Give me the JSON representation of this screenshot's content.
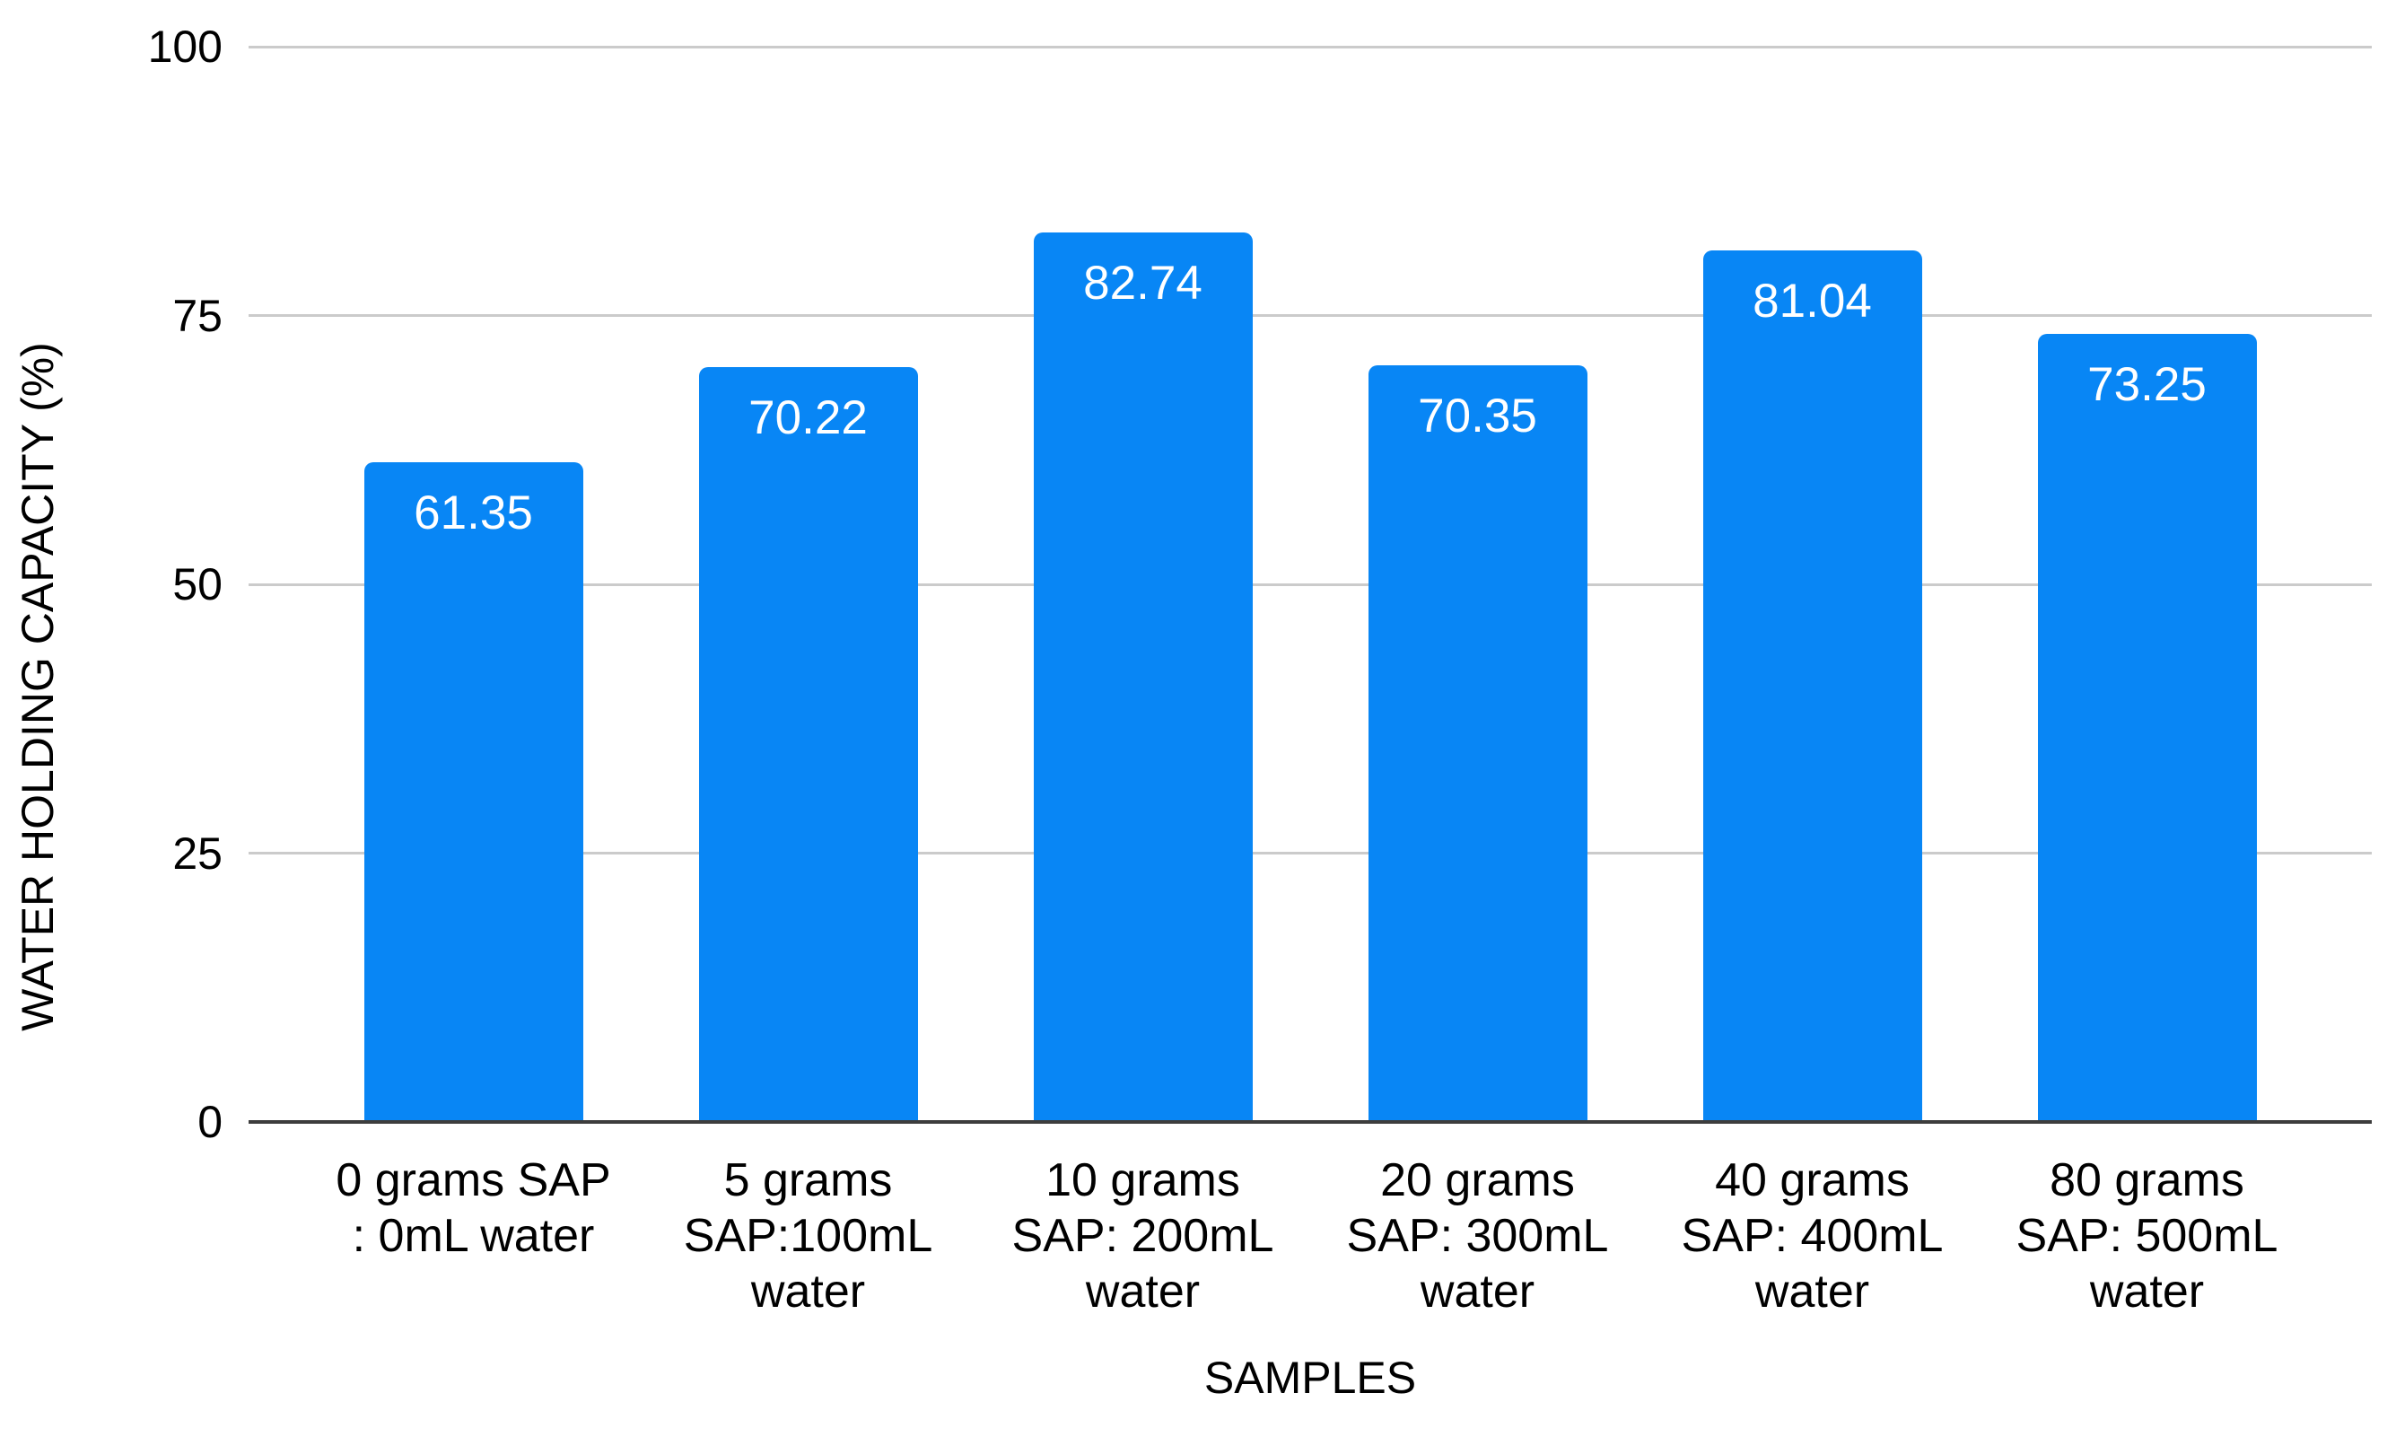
{
  "chart_data": {
    "type": "bar",
    "title": "",
    "xlabel": "SAMPLES",
    "ylabel": "WATER HOLDING CAPACITY (%)",
    "ylim": [
      0,
      100
    ],
    "yticks": [
      0,
      25,
      50,
      75,
      100
    ],
    "grid": "horizontal",
    "legend": "none",
    "bar_color": "#0886f5",
    "gridline_color": "#cbcbcb",
    "baseline_color": "#3d3d3d",
    "value_label_color": "#ffffff",
    "categories": [
      "0 grams SAP : 0mL water",
      "5 grams SAP:100mL water",
      "10 grams SAP: 200mL water",
      "20 grams SAP: 300mL water",
      "40 grams SAP: 400mL water",
      "80 grams SAP: 500mL water"
    ],
    "categories_lines": [
      [
        "0 grams SAP",
        ": 0mL water"
      ],
      [
        "5 grams",
        "SAP:100mL",
        "water"
      ],
      [
        "10 grams",
        "SAP: 200mL",
        "water"
      ],
      [
        "20 grams",
        "SAP: 300mL",
        "water"
      ],
      [
        "40 grams",
        "SAP: 400mL",
        "water"
      ],
      [
        "80 grams",
        "SAP: 500mL",
        "water"
      ]
    ],
    "values": [
      61.35,
      70.22,
      82.74,
      70.35,
      81.04,
      73.25
    ],
    "value_labels": [
      "61.35",
      "70.22",
      "82.74",
      "70.35",
      "81.04",
      "73.25"
    ]
  }
}
